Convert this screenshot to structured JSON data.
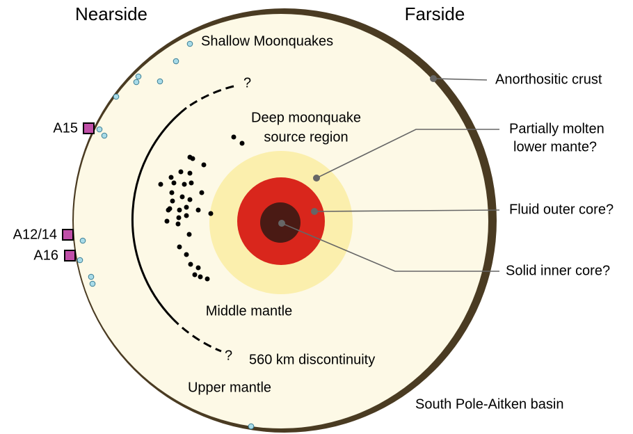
{
  "headings": {
    "nearside": "Nearside",
    "farside": "Farside"
  },
  "labels": {
    "shallow": "Shallow Moonquakes",
    "deep": [
      "Deep moonquake",
      "source region"
    ],
    "middle": "Middle mantle",
    "upper": "Upper mantle",
    "discontinuity": "560 km discontinuity",
    "q1": "?",
    "q2": "?",
    "spa": "South Pole-Aitken basin"
  },
  "callouts": {
    "crust": "Anorthositic crust",
    "molten": [
      "Partially molten",
      "lower mante?"
    ],
    "outer": "Fluid outer core?",
    "inner": "Solid inner core?"
  },
  "stations": [
    "A15",
    "A12/14",
    "A16"
  ]
}
